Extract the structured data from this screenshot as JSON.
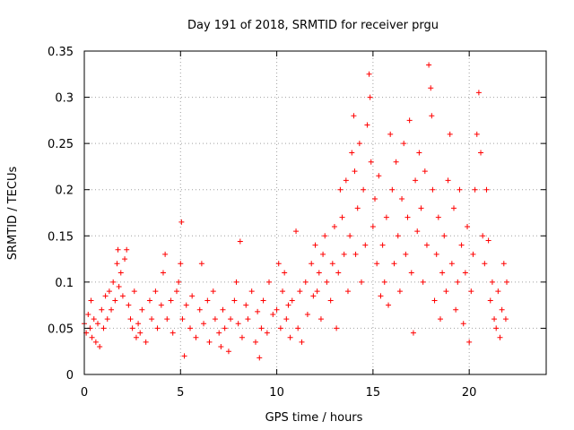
{
  "chart_data": {
    "type": "scatter",
    "title": "Day 191 of 2018, SRMTID for receiver prgu",
    "xlabel": "GPS time / hours",
    "ylabel": "SRMTID / TECUs",
    "xlim": [
      0,
      24
    ],
    "ylim": [
      0,
      0.35
    ],
    "xticks": [
      0,
      5,
      10,
      15,
      20
    ],
    "xtick_labels": [
      "0",
      "5",
      "10",
      "15",
      "20"
    ],
    "yticks": [
      0,
      0.05,
      0.1,
      0.15,
      0.2,
      0.25,
      0.3,
      0.35
    ],
    "ytick_labels": [
      "0",
      "0.05",
      "0.1",
      "0.15",
      "0.2",
      "0.25",
      "0.3",
      "0.35"
    ],
    "grid": true,
    "marker": "+",
    "color": "#ff0000",
    "series": [
      {
        "name": "SRMTID",
        "points": [
          [
            0.0,
            0.055
          ],
          [
            0.1,
            0.045
          ],
          [
            0.2,
            0.065
          ],
          [
            0.3,
            0.05
          ],
          [
            0.35,
            0.08
          ],
          [
            0.4,
            0.04
          ],
          [
            0.5,
            0.06
          ],
          [
            0.6,
            0.035
          ],
          [
            0.7,
            0.055
          ],
          [
            0.8,
            0.03
          ],
          [
            0.9,
            0.07
          ],
          [
            1.0,
            0.05
          ],
          [
            1.1,
            0.085
          ],
          [
            1.2,
            0.06
          ],
          [
            1.3,
            0.09
          ],
          [
            1.4,
            0.07
          ],
          [
            1.5,
            0.1
          ],
          [
            1.6,
            0.08
          ],
          [
            1.7,
            0.12
          ],
          [
            1.75,
            0.135
          ],
          [
            1.8,
            0.095
          ],
          [
            1.9,
            0.11
          ],
          [
            2.0,
            0.085
          ],
          [
            2.1,
            0.125
          ],
          [
            2.2,
            0.135
          ],
          [
            2.3,
            0.075
          ],
          [
            2.4,
            0.06
          ],
          [
            2.5,
            0.05
          ],
          [
            2.6,
            0.09
          ],
          [
            2.7,
            0.04
          ],
          [
            2.8,
            0.055
          ],
          [
            2.9,
            0.045
          ],
          [
            3.0,
            0.07
          ],
          [
            3.2,
            0.035
          ],
          [
            3.4,
            0.08
          ],
          [
            3.5,
            0.06
          ],
          [
            3.7,
            0.09
          ],
          [
            3.8,
            0.05
          ],
          [
            4.0,
            0.075
          ],
          [
            4.1,
            0.11
          ],
          [
            4.2,
            0.13
          ],
          [
            4.3,
            0.06
          ],
          [
            4.5,
            0.08
          ],
          [
            4.6,
            0.045
          ],
          [
            4.8,
            0.09
          ],
          [
            4.9,
            0.1
          ],
          [
            5.0,
            0.12
          ],
          [
            5.05,
            0.165
          ],
          [
            5.1,
            0.06
          ],
          [
            5.2,
            0.02
          ],
          [
            5.3,
            0.075
          ],
          [
            5.5,
            0.05
          ],
          [
            5.6,
            0.085
          ],
          [
            5.8,
            0.04
          ],
          [
            6.0,
            0.07
          ],
          [
            6.1,
            0.12
          ],
          [
            6.2,
            0.055
          ],
          [
            6.4,
            0.08
          ],
          [
            6.5,
            0.035
          ],
          [
            6.7,
            0.09
          ],
          [
            6.8,
            0.06
          ],
          [
            7.0,
            0.045
          ],
          [
            7.1,
            0.03
          ],
          [
            7.2,
            0.07
          ],
          [
            7.3,
            0.05
          ],
          [
            7.5,
            0.025
          ],
          [
            7.6,
            0.06
          ],
          [
            7.8,
            0.08
          ],
          [
            7.9,
            0.1
          ],
          [
            8.0,
            0.055
          ],
          [
            8.1,
            0.144
          ],
          [
            8.2,
            0.04
          ],
          [
            8.4,
            0.075
          ],
          [
            8.5,
            0.06
          ],
          [
            8.7,
            0.09
          ],
          [
            8.9,
            0.035
          ],
          [
            9.0,
            0.068
          ],
          [
            9.1,
            0.018
          ],
          [
            9.2,
            0.05
          ],
          [
            9.3,
            0.08
          ],
          [
            9.5,
            0.045
          ],
          [
            9.6,
            0.1
          ],
          [
            9.8,
            0.065
          ],
          [
            10.0,
            0.07
          ],
          [
            10.1,
            0.12
          ],
          [
            10.2,
            0.05
          ],
          [
            10.3,
            0.09
          ],
          [
            10.4,
            0.11
          ],
          [
            10.5,
            0.06
          ],
          [
            10.6,
            0.075
          ],
          [
            10.7,
            0.04
          ],
          [
            10.8,
            0.08
          ],
          [
            11.0,
            0.155
          ],
          [
            11.1,
            0.05
          ],
          [
            11.2,
            0.09
          ],
          [
            11.3,
            0.035
          ],
          [
            11.5,
            0.1
          ],
          [
            11.6,
            0.065
          ],
          [
            11.8,
            0.12
          ],
          [
            11.9,
            0.085
          ],
          [
            12.0,
            0.14
          ],
          [
            12.1,
            0.09
          ],
          [
            12.2,
            0.11
          ],
          [
            12.3,
            0.06
          ],
          [
            12.4,
            0.13
          ],
          [
            12.5,
            0.15
          ],
          [
            12.6,
            0.1
          ],
          [
            12.8,
            0.08
          ],
          [
            12.9,
            0.12
          ],
          [
            13.0,
            0.16
          ],
          [
            13.1,
            0.05
          ],
          [
            13.2,
            0.11
          ],
          [
            13.3,
            0.2
          ],
          [
            13.4,
            0.17
          ],
          [
            13.5,
            0.13
          ],
          [
            13.6,
            0.21
          ],
          [
            13.7,
            0.09
          ],
          [
            13.8,
            0.15
          ],
          [
            13.9,
            0.24
          ],
          [
            14.0,
            0.28
          ],
          [
            14.05,
            0.22
          ],
          [
            14.1,
            0.13
          ],
          [
            14.2,
            0.18
          ],
          [
            14.3,
            0.25
          ],
          [
            14.4,
            0.1
          ],
          [
            14.5,
            0.2
          ],
          [
            14.6,
            0.14
          ],
          [
            14.7,
            0.27
          ],
          [
            14.8,
            0.325
          ],
          [
            14.85,
            0.3
          ],
          [
            14.9,
            0.23
          ],
          [
            15.0,
            0.16
          ],
          [
            15.1,
            0.19
          ],
          [
            15.2,
            0.12
          ],
          [
            15.3,
            0.215
          ],
          [
            15.4,
            0.085
          ],
          [
            15.5,
            0.14
          ],
          [
            15.6,
            0.1
          ],
          [
            15.7,
            0.17
          ],
          [
            15.8,
            0.075
          ],
          [
            15.9,
            0.26
          ],
          [
            16.0,
            0.2
          ],
          [
            16.1,
            0.12
          ],
          [
            16.2,
            0.23
          ],
          [
            16.3,
            0.15
          ],
          [
            16.4,
            0.09
          ],
          [
            16.5,
            0.19
          ],
          [
            16.6,
            0.25
          ],
          [
            16.7,
            0.13
          ],
          [
            16.8,
            0.17
          ],
          [
            16.9,
            0.275
          ],
          [
            17.0,
            0.11
          ],
          [
            17.1,
            0.045
          ],
          [
            17.2,
            0.21
          ],
          [
            17.3,
            0.155
          ],
          [
            17.4,
            0.24
          ],
          [
            17.5,
            0.18
          ],
          [
            17.6,
            0.1
          ],
          [
            17.7,
            0.22
          ],
          [
            17.8,
            0.14
          ],
          [
            17.9,
            0.335
          ],
          [
            18.0,
            0.31
          ],
          [
            18.05,
            0.28
          ],
          [
            18.1,
            0.2
          ],
          [
            18.2,
            0.08
          ],
          [
            18.3,
            0.13
          ],
          [
            18.4,
            0.17
          ],
          [
            18.5,
            0.06
          ],
          [
            18.6,
            0.11
          ],
          [
            18.7,
            0.15
          ],
          [
            18.8,
            0.09
          ],
          [
            18.9,
            0.21
          ],
          [
            19.0,
            0.26
          ],
          [
            19.1,
            0.12
          ],
          [
            19.2,
            0.18
          ],
          [
            19.3,
            0.07
          ],
          [
            19.4,
            0.1
          ],
          [
            19.5,
            0.2
          ],
          [
            19.6,
            0.14
          ],
          [
            19.7,
            0.055
          ],
          [
            19.8,
            0.11
          ],
          [
            19.9,
            0.16
          ],
          [
            20.0,
            0.035
          ],
          [
            20.1,
            0.09
          ],
          [
            20.2,
            0.13
          ],
          [
            20.3,
            0.2
          ],
          [
            20.4,
            0.26
          ],
          [
            20.5,
            0.305
          ],
          [
            20.6,
            0.24
          ],
          [
            20.7,
            0.15
          ],
          [
            20.8,
            0.12
          ],
          [
            20.9,
            0.2
          ],
          [
            21.0,
            0.145
          ],
          [
            21.1,
            0.08
          ],
          [
            21.2,
            0.1
          ],
          [
            21.3,
            0.06
          ],
          [
            21.4,
            0.05
          ],
          [
            21.5,
            0.09
          ],
          [
            21.6,
            0.04
          ],
          [
            21.7,
            0.07
          ],
          [
            21.8,
            0.12
          ],
          [
            21.9,
            0.06
          ],
          [
            21.95,
            0.1
          ]
        ]
      }
    ]
  }
}
